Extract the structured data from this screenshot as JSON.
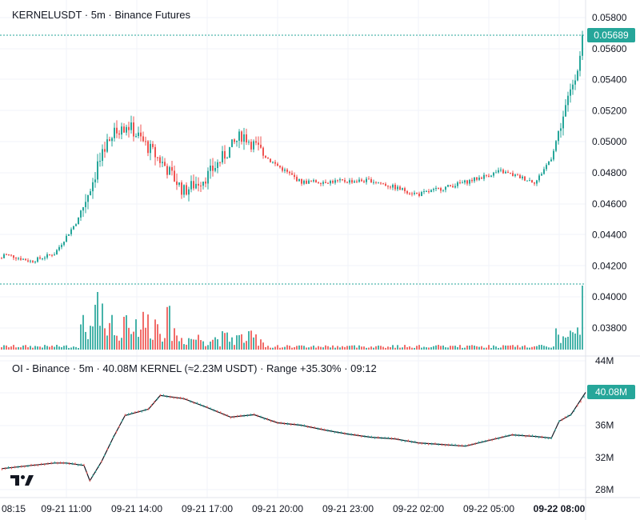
{
  "header": {
    "title": "KERNELUSDT · 5m · Binance Futures"
  },
  "oi_header": {
    "title": "OI - Binance · 5m · 40.08M KERNEL (≈2.23M USDT) · Range +35.30% · 09:12"
  },
  "colors": {
    "up": "#26a69a",
    "down": "#ef5350",
    "grid": "#f0f3fa",
    "separator": "#e0e3eb",
    "price_tag": "#26a69a",
    "oi_line": "#131722"
  },
  "logo_icon": "tradingview-logo-icon",
  "chart_data": [
    {
      "type": "candlestick",
      "title": "KERNELUSDT · 5m · Binance Futures",
      "y_ticks": [
        "0.05800",
        "0.05600",
        "0.05400",
        "0.05200",
        "0.05000",
        "0.04800",
        "0.04600",
        "0.04400",
        "0.04200",
        "0.04000",
        "0.03800"
      ],
      "ylim": [
        0.0366,
        0.059
      ],
      "last_price": "0.05689",
      "candles_approx": [
        {
          "t": "09-21 08:15",
          "o": 0.0425,
          "h": 0.043,
          "l": 0.0422,
          "c": 0.0428
        },
        {
          "t": "09-21 09:30",
          "o": 0.0427,
          "h": 0.0429,
          "l": 0.0421,
          "c": 0.0423
        },
        {
          "t": "09-21 10:30",
          "o": 0.0424,
          "h": 0.0429,
          "l": 0.0423,
          "c": 0.0428
        },
        {
          "t": "09-21 11:30",
          "o": 0.043,
          "h": 0.0452,
          "l": 0.0428,
          "c": 0.045
        },
        {
          "t": "09-21 12:30",
          "o": 0.0455,
          "h": 0.05,
          "l": 0.045,
          "c": 0.049
        },
        {
          "t": "09-21 13:00",
          "o": 0.049,
          "h": 0.051,
          "l": 0.0467,
          "c": 0.0505
        },
        {
          "t": "09-21 13:40",
          "o": 0.05,
          "h": 0.053,
          "l": 0.0485,
          "c": 0.051
        },
        {
          "t": "09-21 15:10",
          "o": 0.0505,
          "h": 0.0513,
          "l": 0.047,
          "c": 0.0485
        },
        {
          "t": "09-21 16:00",
          "o": 0.0475,
          "h": 0.048,
          "l": 0.0457,
          "c": 0.0468
        },
        {
          "t": "09-21 17:00",
          "o": 0.047,
          "h": 0.0485,
          "l": 0.0463,
          "c": 0.0478
        },
        {
          "t": "09-21 18:30",
          "o": 0.049,
          "h": 0.051,
          "l": 0.0485,
          "c": 0.0505
        },
        {
          "t": "09-21 19:40",
          "o": 0.0495,
          "h": 0.05,
          "l": 0.0481,
          "c": 0.0488
        },
        {
          "t": "09-21 21:00",
          "o": 0.0477,
          "h": 0.0482,
          "l": 0.047,
          "c": 0.0474
        },
        {
          "t": "09-22 00:00",
          "o": 0.0476,
          "h": 0.048,
          "l": 0.0471,
          "c": 0.0475
        },
        {
          "t": "09-22 02:00",
          "o": 0.0467,
          "h": 0.047,
          "l": 0.0463,
          "c": 0.0466
        },
        {
          "t": "09-22 04:00",
          "o": 0.0474,
          "h": 0.0477,
          "l": 0.0471,
          "c": 0.0474
        },
        {
          "t": "09-22 05:30",
          "o": 0.0478,
          "h": 0.0485,
          "l": 0.0476,
          "c": 0.0481
        },
        {
          "t": "09-22 07:00",
          "o": 0.0478,
          "h": 0.048,
          "l": 0.0472,
          "c": 0.0474
        },
        {
          "t": "09-22 07:40",
          "o": 0.048,
          "h": 0.0498,
          "l": 0.0478,
          "c": 0.049
        },
        {
          "t": "09-22 09:10",
          "o": 0.049,
          "h": 0.058,
          "l": 0.0488,
          "c": 0.05689
        }
      ],
      "volume": "relative bars, spikes near 09-21 13:00–13:40 and at 09-22 09:10"
    },
    {
      "type": "line",
      "title": "OI - Binance · 5m · 40.08M KERNEL (≈2.23M USDT) · Range +35.30% · 09:12",
      "y_ticks": [
        "44M",
        "40M",
        "36M",
        "32M",
        "28M"
      ],
      "ylim": [
        27,
        45
      ],
      "last_value": "40.08M",
      "points": [
        {
          "t": "09-21 08:15",
          "v": 30.6
        },
        {
          "t": "09-21 09:30",
          "v": 31.0
        },
        {
          "t": "09-21 10:30",
          "v": 31.3
        },
        {
          "t": "09-21 11:00",
          "v": 31.3
        },
        {
          "t": "09-21 11:45",
          "v": 31.0
        },
        {
          "t": "09-21 12:00",
          "v": 29.1
        },
        {
          "t": "09-21 12:30",
          "v": 31.5
        },
        {
          "t": "09-21 13:00",
          "v": 34.5
        },
        {
          "t": "09-21 13:30",
          "v": 37.2
        },
        {
          "t": "09-21 14:30",
          "v": 38.0
        },
        {
          "t": "09-21 15:00",
          "v": 39.7
        },
        {
          "t": "09-21 16:00",
          "v": 39.3
        },
        {
          "t": "09-21 17:00",
          "v": 38.2
        },
        {
          "t": "09-21 18:00",
          "v": 37.0
        },
        {
          "t": "09-21 19:00",
          "v": 37.3
        },
        {
          "t": "09-21 20:00",
          "v": 36.3
        },
        {
          "t": "09-21 21:00",
          "v": 36.0
        },
        {
          "t": "09-21 22:00",
          "v": 35.4
        },
        {
          "t": "09-21 23:00",
          "v": 34.9
        },
        {
          "t": "09-22 00:00",
          "v": 34.5
        },
        {
          "t": "09-22 01:00",
          "v": 34.3
        },
        {
          "t": "09-22 02:00",
          "v": 33.8
        },
        {
          "t": "09-22 03:00",
          "v": 33.6
        },
        {
          "t": "09-22 04:00",
          "v": 33.4
        },
        {
          "t": "09-22 05:00",
          "v": 34.1
        },
        {
          "t": "09-22 06:00",
          "v": 34.8
        },
        {
          "t": "09-22 07:00",
          "v": 34.6
        },
        {
          "t": "09-22 07:40",
          "v": 34.4
        },
        {
          "t": "09-22 08:00",
          "v": 36.5
        },
        {
          "t": "09-22 08:30",
          "v": 37.3
        },
        {
          "t": "09-22 09:12",
          "v": 40.08
        }
      ]
    }
  ],
  "x_axis": {
    "labels": [
      "08:15",
      "09-21 11:00",
      "09-21 14:00",
      "09-21 17:00",
      "09-21 20:00",
      "09-21 23:00",
      "09-22 02:00",
      "09-22 05:00",
      "09-22 08:00"
    ],
    "bold_index": 8
  }
}
